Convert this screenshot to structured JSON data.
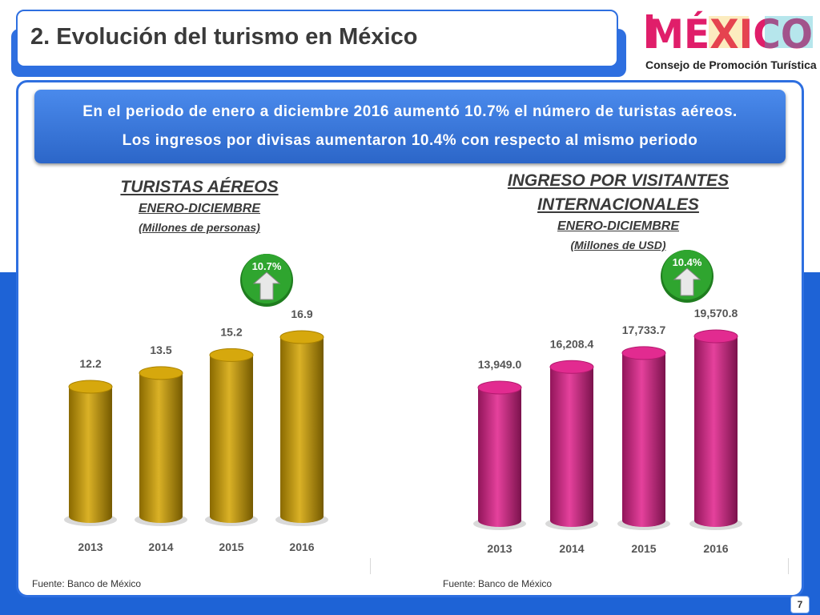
{
  "slide": {
    "title": "2. Evolución del turismo en México",
    "page_number": "7",
    "banner_line1": "En el periodo de enero a diciembre 2016 aumentó 10.7% el número de turistas aéreos.",
    "banner_line2": "Los ingresos por divisas aumentaron 10.4% con respecto al mismo periodo"
  },
  "logo": {
    "wordmark": "MÉXICO",
    "subtitle": "Consejo de Promoción Turística"
  },
  "colors": {
    "theme_blue": "#2e6fe0",
    "chart1_bar": "#d4a300",
    "chart2_bar": "#e0208a",
    "badge_green": "#2fa52f"
  },
  "chart_data": [
    {
      "type": "bar",
      "title": "TURISTAS AÉREOS",
      "subtitle": "ENERO-DICIEMBRE",
      "units": "(Millones de personas)",
      "categories": [
        "2013",
        "2014",
        "2015",
        "2016"
      ],
      "values": [
        12.2,
        13.5,
        15.2,
        16.9
      ],
      "value_labels": [
        "12.2",
        "13.5",
        "15.2",
        "16.9"
      ],
      "growth_badge": "10.7%",
      "source": "Fuente: Banco de México"
    },
    {
      "type": "bar",
      "title_line1": "INGRESO  POR VISITANTES",
      "title_line2": "INTERNACIONALES",
      "subtitle": "ENERO-DICIEMBRE",
      "units": "(Millones de USD)",
      "categories": [
        "2013",
        "2014",
        "2015",
        "2016"
      ],
      "values": [
        13949.0,
        16208.4,
        17733.7,
        19570.8
      ],
      "value_labels": [
        "13,949.0",
        "16,208.4",
        "17,733.7",
        "19,570.8"
      ],
      "growth_badge": "10.4%",
      "source": "Fuente: Banco de México"
    }
  ]
}
